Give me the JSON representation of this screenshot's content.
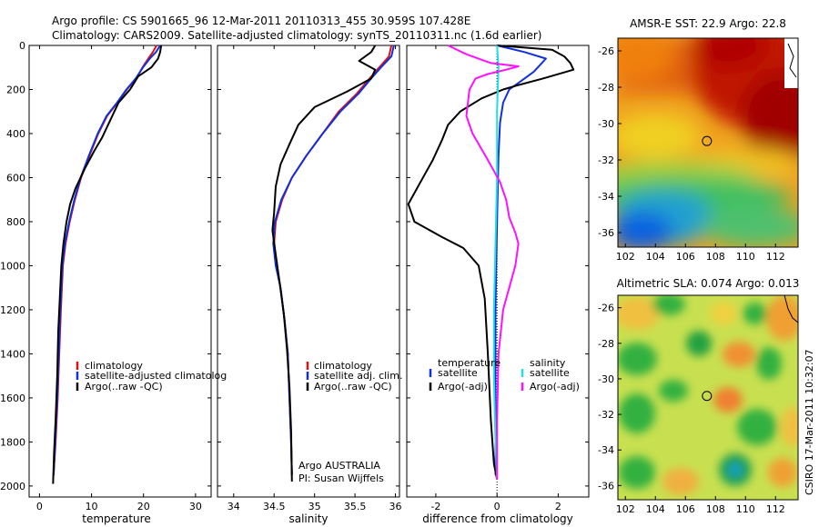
{
  "header": {
    "title_line1": "Argo profile: CS 5901665_96 12-Mar-2011 20110313_455 30.959S 107.428E",
    "title_line2": "Climatology: CARS2009. Satellite-adjusted climatology: synTS_20110311.nc (1.6d earlier)"
  },
  "colors": {
    "climatology": "#e01010",
    "satellite": "#1030e0",
    "argo": "#000000",
    "salinity_diff": "#ff10ff",
    "salinity_sat_diff": "#20e0e0"
  },
  "credit": "CSIRO 17-Mar-2011 10:32:07",
  "chart_data": [
    {
      "type": "line",
      "name": "temperature-profile",
      "xlabel": "temperature",
      "xticks": [
        "0",
        "10",
        "20",
        "30"
      ],
      "xlim": [
        -2,
        33
      ],
      "ylim": [
        2050,
        0
      ],
      "yticks": [
        "0",
        "200",
        "400",
        "600",
        "800",
        "1000",
        "1200",
        "1400",
        "1600",
        "1800",
        "2000"
      ],
      "legend": [
        "climatology",
        "satellite-adjusted climatolog",
        "Argo(..raw -QC)"
      ],
      "series": [
        {
          "name": "climatology",
          "color": "#e01010",
          "points": [
            [
              22.5,
              0
            ],
            [
              21.8,
              30
            ],
            [
              20.9,
              60
            ],
            [
              19.8,
              100
            ],
            [
              18.6,
              150
            ],
            [
              16.8,
              200
            ],
            [
              15.0,
              260
            ],
            [
              13.0,
              320
            ],
            [
              11.3,
              400
            ],
            [
              9.6,
              500
            ],
            [
              8.0,
              600
            ],
            [
              6.8,
              700
            ],
            [
              5.8,
              800
            ],
            [
              5.0,
              900
            ],
            [
              4.5,
              1000
            ],
            [
              4.1,
              1200
            ],
            [
              3.8,
              1400
            ],
            [
              3.5,
              1600
            ],
            [
              3.1,
              1800
            ],
            [
              2.7,
              1950
            ]
          ]
        },
        {
          "name": "satellite-adjusted climatolog",
          "color": "#1030e0",
          "points": [
            [
              23.2,
              0
            ],
            [
              22.4,
              30
            ],
            [
              21.2,
              60
            ],
            [
              19.9,
              100
            ],
            [
              18.5,
              150
            ],
            [
              16.7,
              200
            ],
            [
              14.9,
              260
            ],
            [
              12.9,
              320
            ],
            [
              11.2,
              400
            ],
            [
              9.5,
              500
            ],
            [
              7.9,
              600
            ],
            [
              6.7,
              700
            ],
            [
              5.7,
              800
            ],
            [
              4.9,
              900
            ],
            [
              4.4,
              1000
            ],
            [
              4.0,
              1200
            ],
            [
              3.7,
              1400
            ],
            [
              3.4,
              1600
            ],
            [
              3.0,
              1800
            ],
            [
              2.7,
              1950
            ]
          ]
        },
        {
          "name": "Argo(..raw -QC)",
          "color": "#000000",
          "points": [
            [
              23.4,
              0
            ],
            [
              23.2,
              30
            ],
            [
              22.8,
              60
            ],
            [
              21.5,
              100
            ],
            [
              19.0,
              140
            ],
            [
              17.4,
              200
            ],
            [
              15.2,
              260
            ],
            [
              13.6,
              340
            ],
            [
              12.0,
              420
            ],
            [
              10.5,
              480
            ],
            [
              8.7,
              560
            ],
            [
              6.9,
              650
            ],
            [
              5.9,
              720
            ],
            [
              5.2,
              800
            ],
            [
              4.6,
              900
            ],
            [
              4.2,
              1000
            ],
            [
              3.9,
              1150
            ],
            [
              3.6,
              1300
            ],
            [
              3.4,
              1500
            ],
            [
              3.1,
              1700
            ],
            [
              2.8,
              1850
            ],
            [
              2.6,
              1990
            ]
          ]
        }
      ]
    },
    {
      "type": "line",
      "name": "salinity-profile",
      "xlabel": "salinity",
      "xticks": [
        "34",
        "34.5",
        "35",
        "35.5",
        "36"
      ],
      "xlim": [
        33.8,
        36.05
      ],
      "ylim": [
        2050,
        0
      ],
      "legend": [
        "climatology",
        "satellite adj. clim.",
        "Argo(..raw -QC)"
      ],
      "annotation": [
        "Argo AUSTRALIA",
        "PI: Susan Wijffels"
      ],
      "series": [
        {
          "name": "climatology",
          "color": "#e01010",
          "points": [
            [
              35.95,
              0
            ],
            [
              35.92,
              50
            ],
            [
              35.8,
              100
            ],
            [
              35.68,
              150
            ],
            [
              35.52,
              220
            ],
            [
              35.3,
              300
            ],
            [
              35.1,
              400
            ],
            [
              34.9,
              500
            ],
            [
              34.72,
              600
            ],
            [
              34.6,
              700
            ],
            [
              34.52,
              800
            ],
            [
              34.5,
              900
            ],
            [
              34.53,
              1000
            ],
            [
              34.58,
              1100
            ],
            [
              34.63,
              1250
            ],
            [
              34.67,
              1400
            ],
            [
              34.69,
              1600
            ],
            [
              34.71,
              1800
            ],
            [
              34.72,
              1950
            ]
          ]
        },
        {
          "name": "satellite adj. clim.",
          "color": "#1030e0",
          "points": [
            [
              35.98,
              0
            ],
            [
              35.95,
              50
            ],
            [
              35.82,
              100
            ],
            [
              35.7,
              150
            ],
            [
              35.54,
              220
            ],
            [
              35.32,
              300
            ],
            [
              35.1,
              400
            ],
            [
              34.9,
              500
            ],
            [
              34.72,
              600
            ],
            [
              34.59,
              700
            ],
            [
              34.51,
              800
            ],
            [
              34.49,
              900
            ],
            [
              34.52,
              1000
            ],
            [
              34.58,
              1100
            ],
            [
              34.63,
              1250
            ],
            [
              34.67,
              1400
            ],
            [
              34.69,
              1600
            ],
            [
              34.71,
              1800
            ],
            [
              34.72,
              1950
            ]
          ]
        },
        {
          "name": "Argo(..raw -QC)",
          "color": "#000000",
          "points": [
            [
              35.75,
              0
            ],
            [
              35.7,
              30
            ],
            [
              35.55,
              70
            ],
            [
              35.75,
              110
            ],
            [
              35.7,
              150
            ],
            [
              35.4,
              210
            ],
            [
              35.0,
              280
            ],
            [
              34.8,
              360
            ],
            [
              34.7,
              440
            ],
            [
              34.58,
              540
            ],
            [
              34.52,
              640
            ],
            [
              34.5,
              760
            ],
            [
              34.48,
              840
            ],
            [
              34.52,
              950
            ],
            [
              34.57,
              1080
            ],
            [
              34.62,
              1220
            ],
            [
              34.66,
              1380
            ],
            [
              34.69,
              1550
            ],
            [
              34.71,
              1750
            ],
            [
              34.72,
              1980
            ]
          ]
        }
      ]
    },
    {
      "type": "line",
      "name": "difference-profile",
      "xlabel": "difference from climatology",
      "xticks": [
        "-2",
        "0",
        "2"
      ],
      "xlim": [
        -2.95,
        3.0
      ],
      "ylim": [
        2050,
        0
      ],
      "legend_temperature": [
        "temperature",
        "satellite",
        "Argo(-adj)"
      ],
      "legend_salinity": [
        "salinity",
        "satellite",
        "Argo(-adj)"
      ],
      "series": [
        {
          "name": "satellite",
          "color": "#1030e0",
          "points": [
            [
              0.0,
              0
            ],
            [
              0.9,
              30
            ],
            [
              1.6,
              60
            ],
            [
              1.4,
              90
            ],
            [
              1.2,
              120
            ],
            [
              0.8,
              160
            ],
            [
              0.4,
              200
            ],
            [
              0.2,
              260
            ],
            [
              0.1,
              350
            ],
            [
              0.05,
              500
            ],
            [
              0.0,
              800
            ],
            [
              -0.05,
              1200
            ],
            [
              -0.05,
              1600
            ],
            [
              -0.05,
              1950
            ]
          ]
        },
        {
          "name": "Argo(-adj)",
          "color": "#000000",
          "points": [
            [
              0.0,
              0
            ],
            [
              1.8,
              20
            ],
            [
              2.2,
              50
            ],
            [
              2.4,
              80
            ],
            [
              2.5,
              110
            ],
            [
              1.5,
              150
            ],
            [
              0.7,
              180
            ],
            [
              0.2,
              200
            ],
            [
              -0.5,
              240
            ],
            [
              -1.2,
              300
            ],
            [
              -1.6,
              360
            ],
            [
              -1.8,
              430
            ],
            [
              -2.1,
              520
            ],
            [
              -2.5,
              620
            ],
            [
              -2.9,
              720
            ],
            [
              -2.7,
              800
            ],
            [
              -1.8,
              870
            ],
            [
              -1.1,
              920
            ],
            [
              -0.6,
              1000
            ],
            [
              -0.4,
              1150
            ],
            [
              -0.3,
              1400
            ],
            [
              -0.2,
              1700
            ],
            [
              -0.1,
              1900
            ],
            [
              0.0,
              1970
            ]
          ]
        },
        {
          "name": "salinity satellite",
          "color": "#20e0e0",
          "points": [
            [
              0.0,
              0
            ],
            [
              0.05,
              100
            ],
            [
              0.0,
              300
            ],
            [
              0.0,
              600
            ],
            [
              -0.05,
              900
            ],
            [
              -0.1,
              1200
            ],
            [
              -0.1,
              1500
            ],
            [
              -0.05,
              1800
            ],
            [
              0.0,
              1970
            ]
          ]
        },
        {
          "name": "salinity Argo(-adj)",
          "color": "#ff10ff",
          "points": [
            [
              -1.6,
              0
            ],
            [
              -1.0,
              40
            ],
            [
              -0.2,
              80
            ],
            [
              0.7,
              95
            ],
            [
              0.3,
              110
            ],
            [
              -0.3,
              130
            ],
            [
              -0.7,
              150
            ],
            [
              -0.9,
              200
            ],
            [
              -0.95,
              260
            ],
            [
              -1.0,
              320
            ],
            [
              -0.8,
              400
            ],
            [
              -0.3,
              520
            ],
            [
              0.1,
              620
            ],
            [
              0.3,
              700
            ],
            [
              0.4,
              780
            ],
            [
              0.6,
              850
            ],
            [
              0.7,
              900
            ],
            [
              0.6,
              1000
            ],
            [
              0.4,
              1100
            ],
            [
              0.2,
              1200
            ],
            [
              0.05,
              1400
            ],
            [
              0.0,
              1700
            ],
            [
              0.0,
              1970
            ]
          ]
        }
      ]
    }
  ],
  "maps": [
    {
      "title": "AMSR-E SST: 22.9 Argo: 22.8",
      "xticks": [
        "102",
        "104",
        "106",
        "108",
        "110",
        "112"
      ],
      "yticks": [
        "-26",
        "-28",
        "-30",
        "-32",
        "-34",
        "-36"
      ],
      "xlim": [
        101.5,
        113.5
      ],
      "ylim": [
        -36.8,
        -25.3
      ],
      "argo_lon": 107.428,
      "argo_lat": -30.959
    },
    {
      "title": "Altimetric SLA: 0.074 Argo: 0.013",
      "xticks": [
        "102",
        "104",
        "106",
        "108",
        "110",
        "112"
      ],
      "yticks": [
        "-26",
        "-28",
        "-30",
        "-32",
        "-34",
        "-36"
      ],
      "xlim": [
        101.5,
        113.5
      ],
      "ylim": [
        -36.8,
        -25.3
      ],
      "argo_lon": 107.428,
      "argo_lat": -30.959
    }
  ]
}
